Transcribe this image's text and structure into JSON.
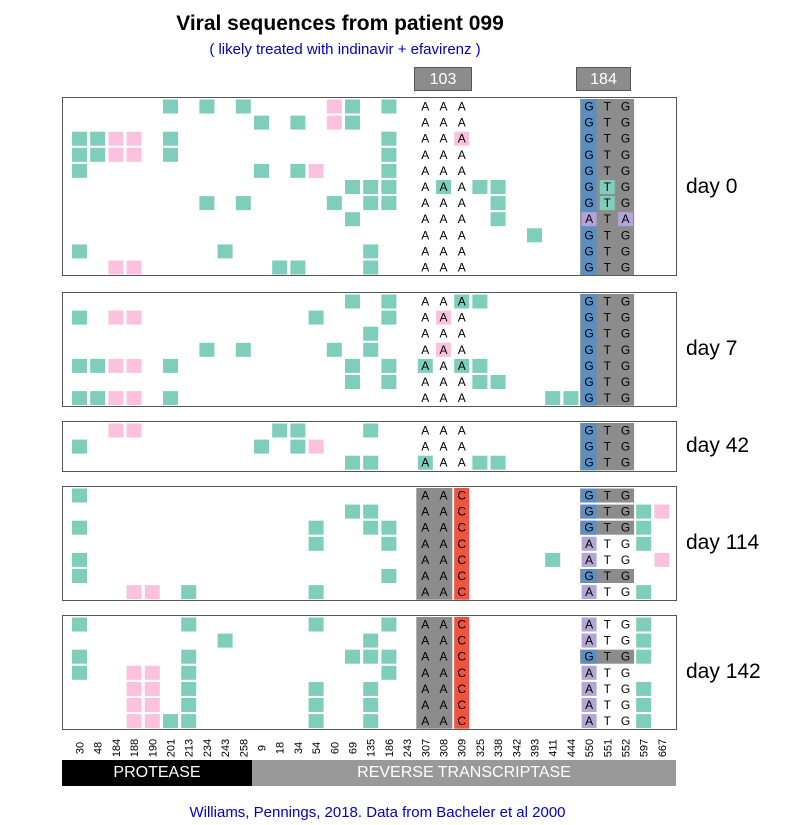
{
  "title": "Viral sequences from patient 099",
  "subtitle": "( likely treated with indinavir + efavirenz )",
  "credit": "Williams, Pennings, 2018. Data from Bacheler et al 2000",
  "codon_headers": [
    "103",
    "184"
  ],
  "regions": [
    {
      "label": "PROTEASE",
      "color": "#000000"
    },
    {
      "label": "REVERSE TRANSCRIPTASE",
      "color": "#999999"
    }
  ],
  "colors": {
    "mutation": "#7fcdbb",
    "pink": "#fbc1df",
    "gray_codon": "#8c8c8c",
    "red": "#f0533f",
    "blue": "#5b8fc4",
    "purple": "#b3a6d6"
  },
  "positions": [
    "30",
    "48",
    "184",
    "188",
    "190",
    "201",
    "213",
    "234",
    "243",
    "258",
    "9",
    "18",
    "34",
    "54",
    "60",
    "69",
    "135",
    "186",
    "243",
    "307",
    "308",
    "309",
    "325",
    "338",
    "342",
    "393",
    "411",
    "444",
    "550",
    "551",
    "552",
    "597",
    "667"
  ],
  "panels": [
    {
      "label": "day 0",
      "rows": [
        {
          "t": [
            5,
            7,
            9,
            15,
            17
          ],
          "p": [
            14
          ],
          "c103": "AAA",
          "c184": "GTG",
          "s": []
        },
        {
          "t": [
            10,
            12,
            15
          ],
          "p": [
            14
          ],
          "c103": "AAA",
          "c184": "GTG",
          "s": []
        },
        {
          "t": [
            0,
            1,
            5,
            17
          ],
          "p": [
            2,
            3,
            21
          ],
          "c103": "AAA",
          "c184": "GTG",
          "s": []
        },
        {
          "t": [
            0,
            1,
            5,
            17
          ],
          "p": [
            2,
            3
          ],
          "c103": "AAA",
          "c184": "GTG",
          "s": []
        },
        {
          "t": [
            0,
            10,
            12,
            17
          ],
          "p": [
            13
          ],
          "c103": "AAA",
          "c184": "GTG",
          "s": []
        },
        {
          "t": [
            15,
            16,
            17,
            20,
            22,
            23,
            29
          ],
          "p": [],
          "c103": "AAA",
          "c184": "GTG",
          "s": []
        },
        {
          "t": [
            7,
            9,
            14,
            16,
            17,
            23,
            29
          ],
          "p": [],
          "c103": "AAA",
          "c184": "GTG",
          "s": []
        },
        {
          "t": [
            15,
            23
          ],
          "p": [],
          "c103": "AAA",
          "c184": "ATA",
          "s": []
        },
        {
          "t": [
            25
          ],
          "p": [],
          "c103": "AAA",
          "c184": "GTG",
          "s": []
        },
        {
          "t": [
            0,
            8,
            16
          ],
          "p": [],
          "c103": "AAA",
          "c184": "GTG",
          "s": []
        },
        {
          "t": [
            11,
            12,
            16
          ],
          "p": [
            2,
            3
          ],
          "c103": "AAA",
          "c184": "GTG",
          "s": []
        }
      ]
    },
    {
      "label": "day 7",
      "rows": [
        {
          "t": [
            15,
            17,
            21,
            22
          ],
          "p": [],
          "c103": "AAA",
          "c184": "GTG",
          "s": []
        },
        {
          "t": [
            0,
            13,
            17
          ],
          "p": [
            2,
            3,
            20
          ],
          "c103": "AAA",
          "c184": "GTG",
          "s": []
        },
        {
          "t": [
            16
          ],
          "p": [],
          "c103": "AAA",
          "c184": "GTG",
          "s": []
        },
        {
          "t": [
            7,
            9,
            14,
            16
          ],
          "p": [
            20
          ],
          "c103": "AAA",
          "c184": "GTG",
          "s": []
        },
        {
          "t": [
            0,
            1,
            5,
            15,
            17,
            19,
            21,
            22
          ],
          "p": [
            2,
            3
          ],
          "c103": "AAA",
          "c184": "GTG",
          "s": []
        },
        {
          "t": [
            15,
            17,
            22,
            23
          ],
          "p": [],
          "c103": "AAA",
          "c184": "GTG",
          "s": []
        },
        {
          "t": [
            0,
            1,
            5,
            26,
            27
          ],
          "p": [
            2,
            3
          ],
          "c103": "AAA",
          "c184": "GTG",
          "s": []
        }
      ]
    },
    {
      "label": "day 42",
      "rows": [
        {
          "t": [
            11,
            12,
            16
          ],
          "p": [
            2,
            3
          ],
          "c103": "AAA",
          "c184": "GTG",
          "s": []
        },
        {
          "t": [
            0,
            10,
            12
          ],
          "p": [
            13
          ],
          "c103": "AAA",
          "c184": "GTG",
          "s": []
        },
        {
          "t": [
            15,
            16,
            19,
            22,
            23
          ],
          "p": [],
          "c103": "AAA",
          "c184": "GTG",
          "s": []
        }
      ]
    },
    {
      "label": "day 114",
      "rows": [
        {
          "t": [
            0
          ],
          "p": [],
          "c103": "AAC",
          "c184": "GTG",
          "s": []
        },
        {
          "t": [
            15,
            16
          ],
          "p": [
            32
          ],
          "c103": "AAC",
          "c184": "GTG",
          "s": [
            31
          ]
        },
        {
          "t": [
            0,
            13,
            16,
            17
          ],
          "p": [],
          "c103": "AAC",
          "c184": "GTG",
          "s": [
            31
          ]
        },
        {
          "t": [
            13,
            17
          ],
          "p": [],
          "c103": "AAC",
          "c184": "ATG",
          "s": [
            31
          ]
        },
        {
          "t": [
            0,
            26
          ],
          "p": [
            32
          ],
          "c103": "AAC",
          "c184": "ATG",
          "s": []
        },
        {
          "t": [
            0,
            17
          ],
          "p": [],
          "c103": "AAC",
          "c184": "GTG",
          "s": []
        },
        {
          "t": [
            6,
            13
          ],
          "p": [
            3,
            4
          ],
          "c103": "AAC",
          "c184": "ATG",
          "s": [
            31
          ]
        }
      ]
    },
    {
      "label": "day 142",
      "rows": [
        {
          "t": [
            0,
            6,
            13,
            17
          ],
          "p": [],
          "c103": "AAC",
          "c184": "ATG",
          "s": [
            31
          ]
        },
        {
          "t": [
            8,
            16
          ],
          "p": [],
          "c103": "AAC",
          "c184": "ATG",
          "s": [
            31
          ]
        },
        {
          "t": [
            0,
            6,
            15,
            16,
            17
          ],
          "p": [],
          "c103": "AAC",
          "c184": "GTG",
          "s": [
            31
          ]
        },
        {
          "t": [
            0,
            6,
            17
          ],
          "p": [
            3,
            4
          ],
          "c103": "AAC",
          "c184": "ATG",
          "s": []
        },
        {
          "t": [
            6,
            13,
            16
          ],
          "p": [
            3,
            4
          ],
          "c103": "AAC",
          "c184": "ATG",
          "s": [
            31
          ]
        },
        {
          "t": [
            6,
            13,
            16
          ],
          "p": [
            3,
            4
          ],
          "c103": "AAC",
          "c184": "ATG",
          "s": [
            31
          ]
        },
        {
          "t": [
            5,
            6,
            13,
            16
          ],
          "p": [
            3,
            4
          ],
          "c103": "AAC",
          "c184": "ATG",
          "s": [
            31
          ]
        }
      ]
    }
  ]
}
